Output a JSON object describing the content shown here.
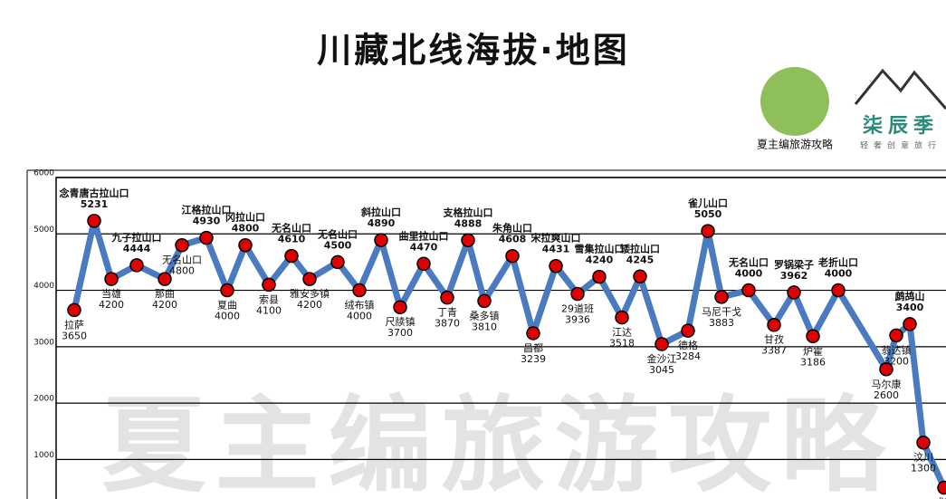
{
  "chart_data": {
    "type": "line",
    "title": "川藏北线海拔·地图",
    "annotations": [
      "夏主编旅游攻略",
      "柒辰季",
      "轻奢创意旅行",
      "夏主编旅游攻略"
    ],
    "categories": [
      "拉萨",
      "念青唐古拉山口",
      "当雄",
      "九子拉山口",
      "那曲",
      "无名山口",
      "江格拉山口",
      "夏曲",
      "冈拉山口",
      "索县",
      "无名山口",
      "雅安多镇",
      "无名山口",
      "绒布镇",
      "斜拉山口",
      "尺牍镇",
      "曲里拉山口",
      "丁青",
      "支格拉山口",
      "桑多镇",
      "朱角山口",
      "昌都",
      "宋拉爽山口",
      "29道班",
      "雪集拉山口",
      "江达",
      "矮拉山口",
      "金沙江",
      "德格",
      "雀儿山口",
      "马尼干戈",
      "无名山口",
      "甘孜",
      "罗锅梁子",
      "炉霍",
      "老折山口",
      "马尔康",
      "翁达镇",
      "鹧鸪山",
      "汶川",
      "成都"
    ],
    "values": [
      3650,
      5231,
      4200,
      4444,
      4200,
      4800,
      4930,
      4000,
      4800,
      4100,
      4610,
      4200,
      4500,
      4000,
      4890,
      3700,
      4470,
      3870,
      4888,
      3810,
      4608,
      3239,
      4431,
      3936,
      4240,
      3518,
      4245,
      3045,
      3284,
      5050,
      3883,
      4000,
      3387,
      3962,
      3186,
      4000,
      2600,
      3200,
      3400,
      1300,
      500
    ],
    "color": "#4a7abf",
    "marker_color": "#e00000",
    "ylim": [
      300,
      6000
    ],
    "yticks": [
      1000,
      2000,
      3000,
      4000,
      5000,
      6000
    ],
    "grid": true
  }
}
